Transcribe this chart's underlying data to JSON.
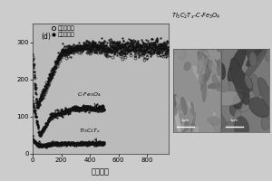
{
  "xlabel": "循环次数",
  "ylabel": "",
  "label_d": "(d)",
  "legend_charge": "充电比容量",
  "legend_discharge": "放电比容量",
  "label_composite": "Ti$_3$C$_2$T$_x$-C-Fe$_3$O$_4$",
  "label_cfe": "C-Fe$_3$O$_4$",
  "label_ti": "Ti$_3$C$_2$T$_x$",
  "xlim": [
    0,
    950
  ],
  "ylim": [
    0,
    350
  ],
  "yticks": [
    0,
    100,
    200,
    300
  ],
  "xticks": [
    0,
    200,
    400,
    600,
    800
  ],
  "bg_color": "#cccccc",
  "plot_bg": "#bbbbbb",
  "line_color": "#111111",
  "figsize": [
    3.0,
    2.0
  ],
  "dpi": 100
}
